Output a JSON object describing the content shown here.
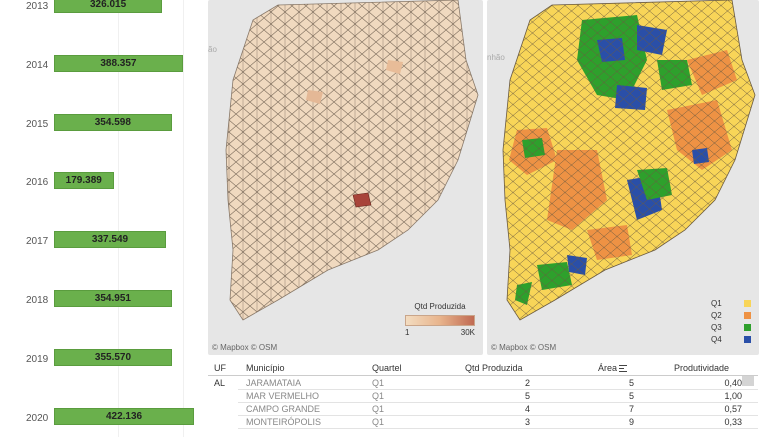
{
  "chart_data": {
    "type": "bar",
    "orientation": "horizontal",
    "categories": [
      "2013",
      "2014",
      "2015",
      "2016",
      "2017",
      "2018",
      "2019",
      "2020"
    ],
    "values": [
      326015,
      388357,
      354598,
      179389,
      337549,
      354951,
      355570,
      422136
    ],
    "labels": [
      "326.015",
      "388.357",
      "354.598",
      "179.389",
      "337.549",
      "354.951",
      "355.570",
      "422.136"
    ],
    "color": "#6ab04c",
    "xlim": [
      0,
      440000
    ]
  },
  "map_left": {
    "attribution": "© Mapbox  © OSM",
    "state_label": "ão",
    "legend_title": "Qtd Produzida",
    "legend_min": "1",
    "legend_max": "30K",
    "colors": [
      "#f3dcc0",
      "#c06a52"
    ]
  },
  "map_right": {
    "attribution": "© Mapbox  © OSM",
    "state_label": "nhão",
    "legend": [
      {
        "label": "Q1",
        "color": "#f8d558"
      },
      {
        "label": "Q2",
        "color": "#ee9244"
      },
      {
        "label": "Q3",
        "color": "#2ea02c"
      },
      {
        "label": "Q4",
        "color": "#2a4fa8"
      }
    ]
  },
  "table": {
    "headers": {
      "uf": "UF",
      "municipio": "Município",
      "quartel": "Quartel",
      "qtd": "Qtd Produzida",
      "area": "Área",
      "produtividade": "Produtividade"
    },
    "uf_value": "AL",
    "rows": [
      {
        "municipio": "JARAMATAIA",
        "quartel": "Q1",
        "qtd": "2",
        "area": "5",
        "produtividade": "0,40"
      },
      {
        "municipio": "MAR VERMELHO",
        "quartel": "Q1",
        "qtd": "5",
        "area": "5",
        "produtividade": "1,00"
      },
      {
        "municipio": "CAMPO GRANDE",
        "quartel": "Q1",
        "qtd": "4",
        "area": "7",
        "produtividade": "0,57"
      },
      {
        "municipio": "MONTEIRÓPOLIS",
        "quartel": "Q1",
        "qtd": "3",
        "area": "9",
        "produtividade": "0,33"
      }
    ]
  }
}
